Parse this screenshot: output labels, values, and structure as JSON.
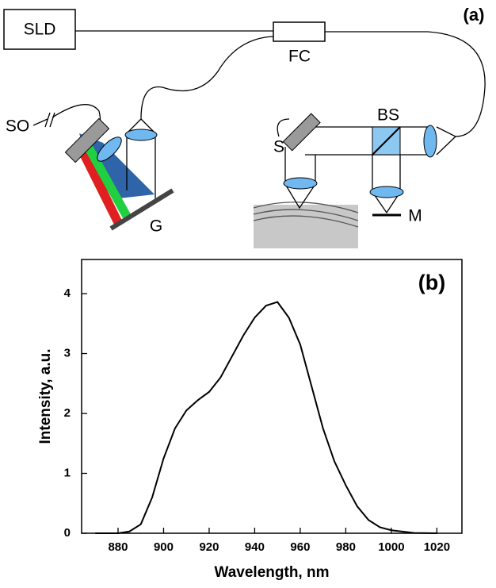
{
  "diagram": {
    "panel_label": "(a)",
    "labels": [
      "SLD",
      "FC",
      "SO",
      "S",
      "BS",
      "M",
      "G"
    ]
  },
  "chart_data": {
    "type": "line",
    "panel_label": "(b)",
    "xlabel": "Wavelength, nm",
    "ylabel": "Intensity, a.u.",
    "xlim": [
      864,
      1031
    ],
    "ylim": [
      0,
      4.57
    ],
    "xticks": [
      880,
      900,
      920,
      940,
      960,
      980,
      1000,
      1020
    ],
    "yticks": [
      0,
      1,
      2,
      3,
      4
    ],
    "series": [
      {
        "color": "#000000",
        "x": [
          870,
          880,
          885,
          890,
          895,
          900,
          905,
          910,
          915,
          920,
          925,
          930,
          935,
          940,
          945,
          950,
          955,
          960,
          965,
          970,
          975,
          980,
          985,
          990,
          995,
          1000,
          1010,
          1020
        ],
        "values": [
          0,
          0,
          0.03,
          0.15,
          0.6,
          1.25,
          1.75,
          2.05,
          2.22,
          2.36,
          2.6,
          2.95,
          3.3,
          3.6,
          3.8,
          3.86,
          3.6,
          3.15,
          2.45,
          1.75,
          1.2,
          0.8,
          0.45,
          0.22,
          0.1,
          0.05,
          0.005,
          0
        ]
      }
    ]
  }
}
